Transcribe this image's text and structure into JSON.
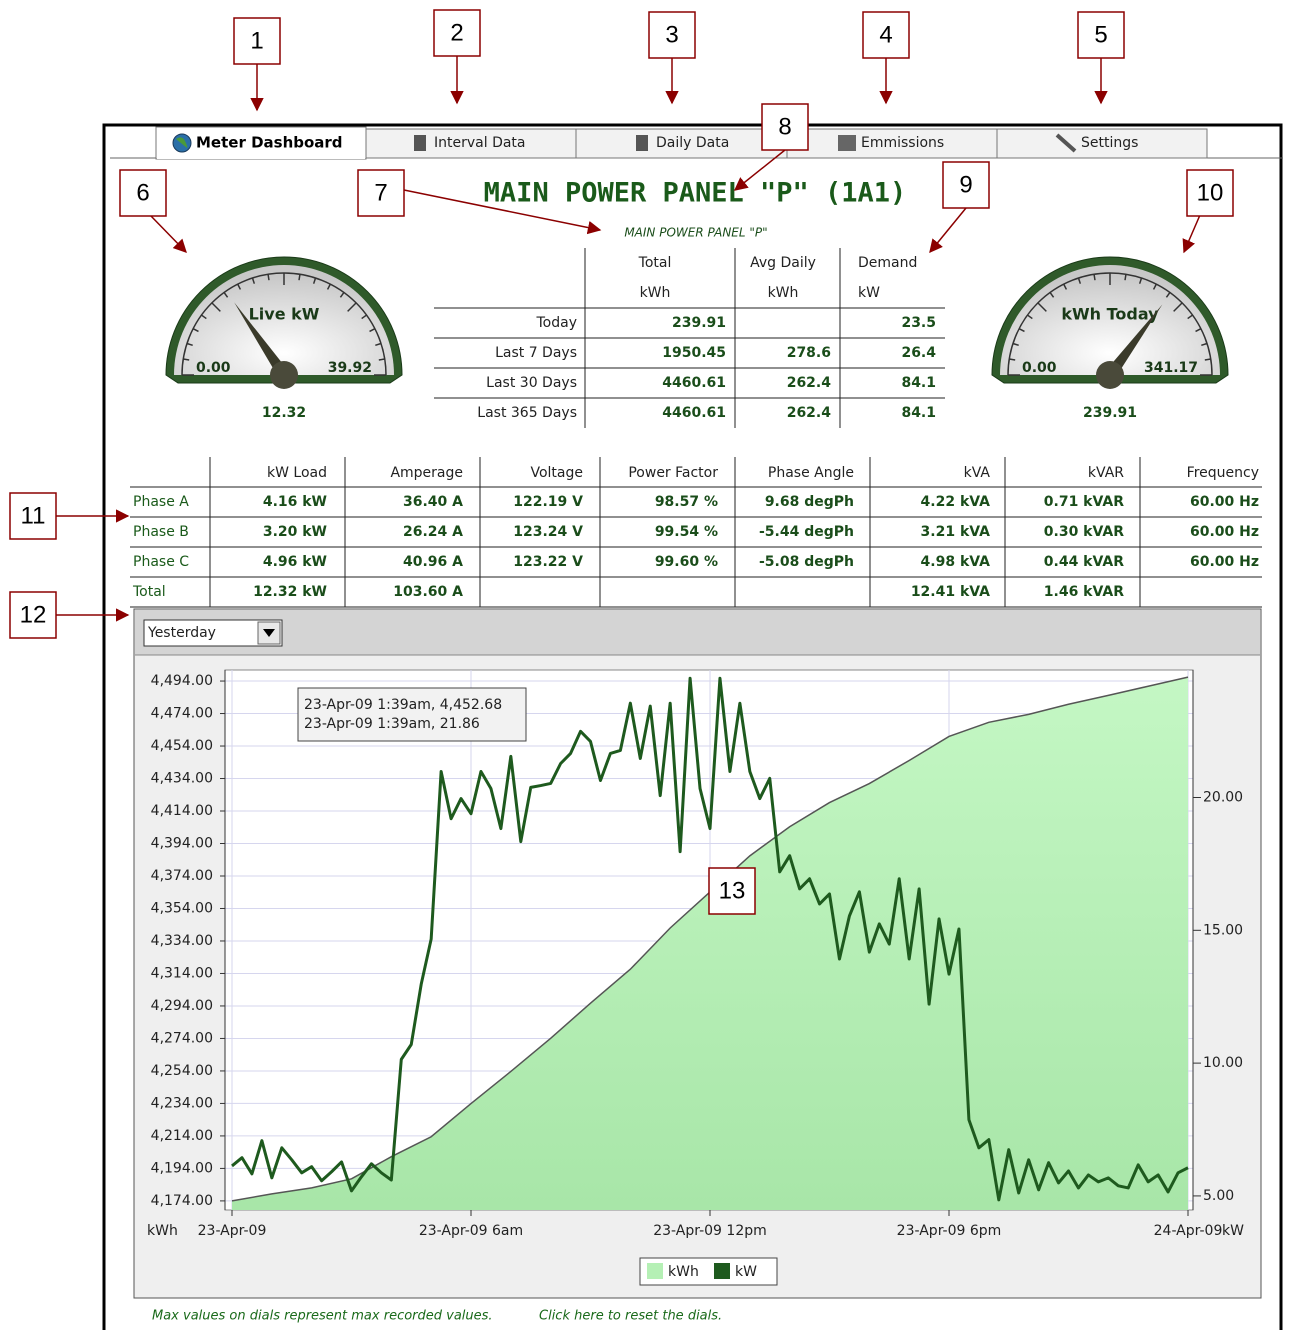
{
  "callouts": [
    1,
    2,
    3,
    4,
    5,
    6,
    7,
    8,
    9,
    10,
    11,
    12,
    13
  ],
  "tabs": [
    "Meter Dashboard",
    "Interval Data",
    "Daily Data",
    "Emmissions",
    "Settings"
  ],
  "title": "MAIN POWER PANEL \"P\" (1A1)",
  "subtitle": "MAIN POWER PANEL \"P\"",
  "gauges": [
    {
      "label": "Live kW",
      "min": {
        "value": 0,
        "label": "0.00"
      },
      "max": 39.92,
      "value": 12.32
    },
    {
      "label": "kWh Today",
      "min": {
        "value": 0,
        "label": "0.00"
      },
      "max": 341.17,
      "value": 239.91
    }
  ],
  "summary": {
    "headers": [
      [
        "Total",
        "kWh"
      ],
      [
        "Avg Daily",
        "kWh"
      ],
      [
        "Demand",
        "kW"
      ]
    ],
    "rows": [
      {
        "label": "Today",
        "cells": [
          239.91,
          null,
          23.5
        ]
      },
      {
        "label": "Last 7 Days",
        "cells": [
          1950.45,
          278.6,
          26.4
        ]
      },
      {
        "label": "Last 30 Days",
        "cells": [
          4460.61,
          262.4,
          84.1
        ]
      },
      {
        "label": "Last 365 Days",
        "cells": [
          4460.61,
          262.4,
          84.1
        ]
      }
    ]
  },
  "phase_table": {
    "columns": [
      "kW Load",
      "Amperage",
      "Voltage",
      "Power Factor",
      "Phase Angle",
      "kVA",
      "kVAR",
      "Frequency"
    ],
    "rows": [
      {
        "name": "Phase A",
        "cells": [
          "4.16 kW",
          "36.40 A",
          "122.19 V",
          "98.57 %",
          "9.68 degPh",
          "4.22 kVA",
          "0.71 kVAR",
          "60.00 Hz"
        ]
      },
      {
        "name": "Phase B",
        "cells": [
          "3.20 kW",
          "26.24 A",
          "123.24 V",
          "99.54 %",
          "-5.44 degPh",
          "3.21 kVA",
          "0.30 kVAR",
          "60.00 Hz"
        ]
      },
      {
        "name": "Phase C",
        "cells": [
          "4.96 kW",
          "40.96 A",
          "123.22 V",
          "99.60 %",
          "-5.08 degPh",
          "4.98 kVA",
          "0.44 kVAR",
          "60.00 Hz"
        ]
      },
      {
        "name": "Total",
        "cells": [
          "12.32 kW",
          "103.60 A",
          null,
          null,
          null,
          "12.41 kVA",
          "1.46 kVAR",
          null
        ]
      }
    ]
  },
  "period_select": "Yesterday",
  "chart_data": {
    "type": "line",
    "series": [
      {
        "name": "kWh",
        "type": "area",
        "color": "#b5f0b5",
        "x": [
          0,
          1,
          2,
          3,
          4,
          5,
          6,
          7,
          8,
          9,
          10,
          11,
          12,
          13,
          14,
          15,
          16,
          17,
          18,
          19,
          20,
          21,
          22,
          23,
          24
        ],
        "values": [
          4174.0,
          4178.3,
          4182.0,
          4187.6,
          4201.2,
          4213.5,
          4233.9,
          4253.7,
          4274.1,
          4295.7,
          4316.6,
          4342.0,
          4364.2,
          4386.4,
          4404.3,
          4419.2,
          4430.9,
          4445.1,
          4459.9,
          4468.6,
          4473.5,
          4479.7,
          4485.2,
          4490.8,
          4496.4
        ]
      },
      {
        "name": "kW",
        "type": "line",
        "color": "#1e5a1e",
        "axis": "y2",
        "x": [
          0,
          0.25,
          0.5,
          0.75,
          1,
          1.25,
          1.5,
          1.75,
          2,
          2.25,
          2.5,
          2.75,
          3,
          3.25,
          3.5,
          3.75,
          4,
          4.25,
          4.5,
          4.75,
          5,
          5.25,
          5.5,
          5.75,
          6,
          6.25,
          6.5,
          6.75,
          7,
          7.25,
          7.5,
          7.75,
          8,
          8.25,
          8.5,
          8.75,
          9,
          9.25,
          9.5,
          9.75,
          10,
          10.25,
          10.5,
          10.75,
          11,
          11.25,
          11.5,
          11.75,
          12,
          12.25,
          12.5,
          12.75,
          13,
          13.25,
          13.5,
          13.75,
          14,
          14.25,
          14.5,
          14.75,
          15,
          15.25,
          15.5,
          15.75,
          16,
          16.25,
          16.5,
          16.75,
          17,
          17.25,
          17.5,
          17.75,
          18,
          18.25,
          18.5,
          18.75,
          19,
          19.25,
          19.5,
          19.75,
          20,
          20.25,
          20.5,
          20.75,
          21,
          21.25,
          21.5,
          21.75,
          22,
          22.25,
          22.5,
          22.75,
          23,
          23.25,
          23.5,
          23.75,
          24
        ],
        "values": [
          6.13,
          6.44,
          5.83,
          7.08,
          5.68,
          6.81,
          6.36,
          5.87,
          6.1,
          5.57,
          5.91,
          6.28,
          5.19,
          5.72,
          6.21,
          5.87,
          5.6,
          10.14,
          10.7,
          12.97,
          14.67,
          20.98,
          19.2,
          19.96,
          19.39,
          20.98,
          20.34,
          18.83,
          21.55,
          18.34,
          20.38,
          20.45,
          20.53,
          21.28,
          21.66,
          22.49,
          22.11,
          20.64,
          21.66,
          21.77,
          23.55,
          21.47,
          23.44,
          20.07,
          23.55,
          17.96,
          24.49,
          20.34,
          18.83,
          24.49,
          20.98,
          23.55,
          20.98,
          19.96,
          20.72,
          17.2,
          17.81,
          16.56,
          16.94,
          15.99,
          16.37,
          13.92,
          15.54,
          16.45,
          14.18,
          15.24,
          14.48,
          16.94,
          13.92,
          16.56,
          12.22,
          15.43,
          13.35,
          15.05,
          7.87,
          6.81,
          7.12,
          4.85,
          6.74,
          5.11,
          6.36,
          5.23,
          6.25,
          5.49,
          5.94,
          5.3,
          5.79,
          5.53,
          5.68,
          5.38,
          5.3,
          6.17,
          5.53,
          5.79,
          5.15,
          5.87,
          6.06
        ]
      }
    ],
    "xlim": [
      0,
      24
    ],
    "xticks": [
      {
        "value": 0,
        "label": "23-Apr-09"
      },
      {
        "value": 6,
        "label": "23-Apr-09 6am"
      },
      {
        "value": 12,
        "label": "23-Apr-09 12pm"
      },
      {
        "value": 18,
        "label": "23-Apr-09 6pm"
      },
      {
        "value": 24,
        "label": "24-Apr-09"
      }
    ],
    "ylim": [
      4168.4,
      4500.8
    ],
    "yticks": [
      {
        "value": 4174,
        "label": "4,174.00"
      },
      {
        "value": 4194,
        "label": "4,194.00"
      },
      {
        "value": 4214,
        "label": "4,214.00"
      },
      {
        "value": 4234,
        "label": "4,234.00"
      },
      {
        "value": 4254,
        "label": "4,254.00"
      },
      {
        "value": 4274,
        "label": "4,274.00"
      },
      {
        "value": 4294,
        "label": "4,294.00"
      },
      {
        "value": 4314,
        "label": "4,314.00"
      },
      {
        "value": 4334,
        "label": "4,334.00"
      },
      {
        "value": 4354,
        "label": "4,354.00"
      },
      {
        "value": 4374,
        "label": "4,374.00"
      },
      {
        "value": 4394,
        "label": "4,394.00"
      },
      {
        "value": 4414,
        "label": "4,414.00"
      },
      {
        "value": 4434,
        "label": "4,434.00"
      },
      {
        "value": 4454,
        "label": "4,454.00"
      },
      {
        "value": 4474,
        "label": "4,474.00"
      },
      {
        "value": 4494,
        "label": "4,494.00"
      }
    ],
    "y2lim": [
      4.47,
      24.8
    ],
    "y2ticks": [
      {
        "value": 5,
        "label": "5.00"
      },
      {
        "value": 10,
        "label": "10.00"
      },
      {
        "value": 15,
        "label": "15.00"
      },
      {
        "value": 20,
        "label": "20.00"
      }
    ],
    "ylabel": "kWh",
    "y2label": "kW",
    "grid": true,
    "tooltip": [
      "23-Apr-09 1:39am, 4,452.68",
      "23-Apr-09 1:39am, 21.86"
    ]
  },
  "footer": {
    "note": "Max values on dials represent max recorded values.",
    "link": "Click here to reset the dials."
  }
}
